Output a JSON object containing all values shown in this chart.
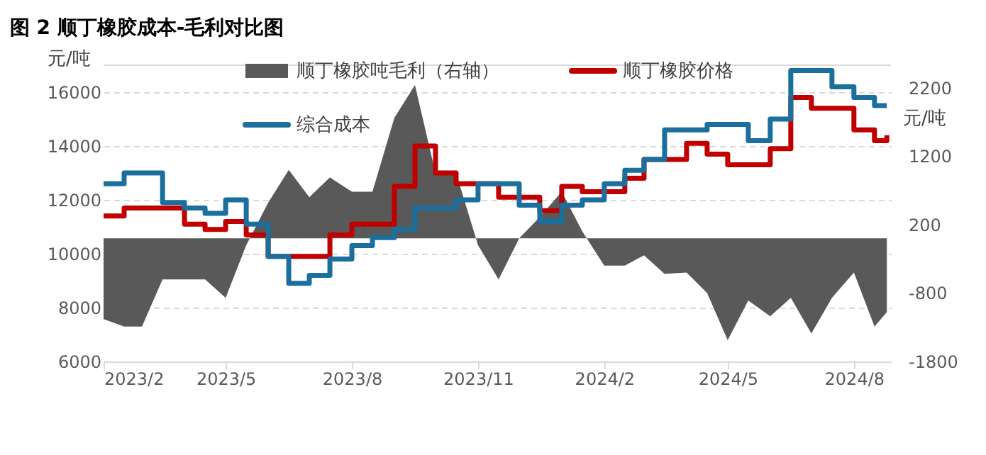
{
  "chart_data": {
    "type": "step",
    "title": "图 2 顺丁橡胶成本-毛利对比图",
    "x": [
      "2023-02-01",
      "2023-02-16",
      "2023-03-01",
      "2023-03-16",
      "2023-04-01",
      "2023-04-16",
      "2023-05-01",
      "2023-05-16",
      "2023-06-01",
      "2023-06-16",
      "2023-07-01",
      "2023-07-16",
      "2023-08-01",
      "2023-08-16",
      "2023-09-01",
      "2023-09-16",
      "2023-10-01",
      "2023-10-16",
      "2023-11-01",
      "2023-11-16",
      "2023-12-01",
      "2023-12-16",
      "2024-01-01",
      "2024-01-16",
      "2024-02-01",
      "2024-02-16",
      "2024-03-01",
      "2024-03-16",
      "2024-04-01",
      "2024-04-16",
      "2024-05-01",
      "2024-05-16",
      "2024-06-01",
      "2024-06-16",
      "2024-07-01",
      "2024-07-16",
      "2024-08-01",
      "2024-08-16",
      "2024-08-25"
    ],
    "series": [
      {
        "name": "顺丁橡胶吨毛利（右轴）",
        "type": "area",
        "axis": "y2",
        "color": "#595959",
        "values": [
          -1180,
          -1290,
          -1290,
          -600,
          -600,
          -600,
          -870,
          -100,
          520,
          1000,
          600,
          890,
          680,
          680,
          1760,
          2240,
          950,
          950,
          -100,
          -600,
          0,
          310,
          680,
          100,
          -400,
          -400,
          -250,
          -520,
          -500,
          -800,
          -1490,
          -910,
          -1140,
          -870,
          -1390,
          -870,
          -500,
          -1290,
          -1080
        ]
      },
      {
        "name": "顺丁橡胶价格",
        "color": "#c00000",
        "values": [
          11400,
          11700,
          11700,
          11700,
          11100,
          10900,
          11200,
          10700,
          9900,
          9900,
          9900,
          10700,
          11100,
          11100,
          12500,
          14000,
          13000,
          12600,
          12600,
          12100,
          12100,
          11600,
          12500,
          12300,
          12300,
          12800,
          13500,
          13500,
          14100,
          13700,
          13300,
          13300,
          13900,
          15800,
          15400,
          15400,
          14600,
          14200,
          14400
        ]
      },
      {
        "name": "综合成本",
        "color": "#1a6f9c",
        "values": [
          12600,
          13000,
          13000,
          11900,
          11700,
          11500,
          12000,
          11100,
          9900,
          8900,
          9200,
          9800,
          10300,
          10600,
          10900,
          11700,
          11700,
          12000,
          12600,
          12600,
          11800,
          11200,
          11800,
          12000,
          12600,
          13100,
          13500,
          14600,
          14600,
          14800,
          14800,
          14200,
          15000,
          16800,
          16800,
          16200,
          15800,
          15500,
          15500
        ]
      }
    ],
    "ylabel": "元/吨",
    "y2label": "元/吨",
    "xlim": [
      "2023-02-01",
      "2024-08-28"
    ],
    "xticks": [
      {
        "value": "2023-02-01",
        "label": "2023/2"
      },
      {
        "value": "2023-05-01",
        "label": "2023/5"
      },
      {
        "value": "2023-08-01",
        "label": "2023/8"
      },
      {
        "value": "2023-11-01",
        "label": "2023/11"
      },
      {
        "value": "2024-02-01",
        "label": "2024/2"
      },
      {
        "value": "2024-05-01",
        "label": "2024/5"
      },
      {
        "value": "2024-08-01",
        "label": "2024/8"
      }
    ],
    "ylim": [
      6000,
      17000
    ],
    "yticks": [
      6000,
      8000,
      10000,
      12000,
      14000,
      16000
    ],
    "y2lim": [
      -1800,
      2530
    ],
    "y2ticks": [
      -1800,
      -800,
      200,
      1200,
      2200
    ],
    "grid": "y",
    "legend": "top"
  }
}
